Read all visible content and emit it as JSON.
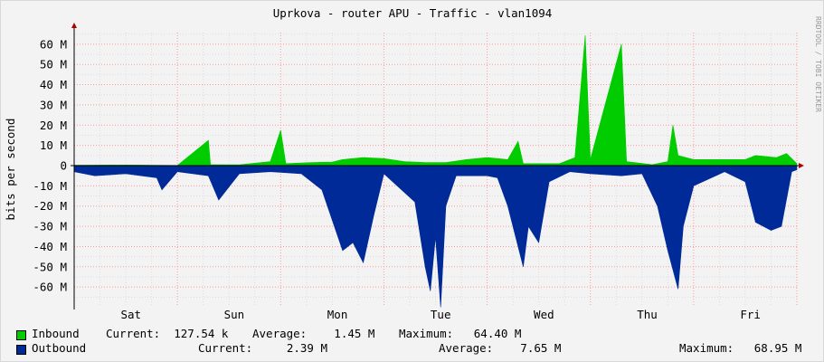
{
  "chart_data": {
    "type": "area",
    "title": "Uprkova - router APU - Traffic - vlan1094",
    "ylabel": "bits per second",
    "watermark": "RRDTOOL / TOBI OETIKER",
    "ylim": [
      -70000000,
      68000000
    ],
    "y_ticks": [
      {
        "value": 60000000,
        "label": "60 M"
      },
      {
        "value": 50000000,
        "label": "50 M"
      },
      {
        "value": 40000000,
        "label": "40 M"
      },
      {
        "value": 30000000,
        "label": "30 M"
      },
      {
        "value": 20000000,
        "label": "20 M"
      },
      {
        "value": 10000000,
        "label": "10 M"
      },
      {
        "value": 0,
        "label": "0"
      },
      {
        "value": -10000000,
        "label": "-10 M"
      },
      {
        "value": -20000000,
        "label": "-20 M"
      },
      {
        "value": -30000000,
        "label": "-30 M"
      },
      {
        "value": -40000000,
        "label": "-40 M"
      },
      {
        "value": -50000000,
        "label": "-50 M"
      },
      {
        "value": -60000000,
        "label": "-60 M"
      }
    ],
    "x_ticks": [
      "Sat",
      "Sun",
      "Mon",
      "Tue",
      "Wed",
      "Thu",
      "Fri"
    ],
    "grid": true,
    "colors": {
      "inbound": "#00cc00",
      "outbound": "#002a97",
      "grid_major": "#ff9999",
      "grid_minor": "#dddddd",
      "axis": "#000000",
      "arrow": "#aa0000"
    },
    "series": [
      {
        "name": "Inbound",
        "color": "#00cc00",
        "points": [
          [
            0,
            0.2
          ],
          [
            0.5,
            0.3
          ],
          [
            1.0,
            0.1
          ],
          [
            1.3,
            12.5
          ],
          [
            1.32,
            0.5
          ],
          [
            1.6,
            0.4
          ],
          [
            1.9,
            2
          ],
          [
            2.0,
            17.5
          ],
          [
            2.05,
            1
          ],
          [
            2.3,
            1.5
          ],
          [
            2.5,
            1.8
          ],
          [
            2.6,
            3
          ],
          [
            2.8,
            4
          ],
          [
            3.0,
            3.5
          ],
          [
            3.2,
            2
          ],
          [
            3.4,
            1.5
          ],
          [
            3.6,
            1.5
          ],
          [
            3.8,
            3
          ],
          [
            4.0,
            4
          ],
          [
            4.2,
            3
          ],
          [
            4.3,
            12
          ],
          [
            4.35,
            1
          ],
          [
            4.7,
            1
          ],
          [
            4.85,
            4
          ],
          [
            4.95,
            64.4
          ],
          [
            5.0,
            3
          ],
          [
            5.3,
            60
          ],
          [
            5.35,
            2
          ],
          [
            5.6,
            0.5
          ],
          [
            5.75,
            2
          ],
          [
            5.8,
            20
          ],
          [
            5.85,
            5
          ],
          [
            6.0,
            3
          ],
          [
            6.2,
            3
          ],
          [
            6.5,
            3
          ],
          [
            6.6,
            5
          ],
          [
            6.8,
            4
          ],
          [
            6.9,
            6
          ],
          [
            7.0,
            1
          ]
        ]
      },
      {
        "name": "Outbound",
        "color": "#002a97",
        "points": [
          [
            0,
            -3
          ],
          [
            0.2,
            -5
          ],
          [
            0.5,
            -4
          ],
          [
            0.8,
            -6
          ],
          [
            0.85,
            -12
          ],
          [
            1.0,
            -3
          ],
          [
            1.3,
            -5
          ],
          [
            1.4,
            -17
          ],
          [
            1.6,
            -4
          ],
          [
            1.9,
            -3
          ],
          [
            2.2,
            -4
          ],
          [
            2.4,
            -12
          ],
          [
            2.6,
            -42
          ],
          [
            2.7,
            -38
          ],
          [
            2.8,
            -48
          ],
          [
            2.9,
            -25
          ],
          [
            3.0,
            -4
          ],
          [
            3.3,
            -18
          ],
          [
            3.4,
            -50
          ],
          [
            3.45,
            -62
          ],
          [
            3.5,
            -35
          ],
          [
            3.55,
            -70
          ],
          [
            3.6,
            -20
          ],
          [
            3.7,
            -5
          ],
          [
            4.0,
            -5
          ],
          [
            4.1,
            -6
          ],
          [
            4.2,
            -20
          ],
          [
            4.35,
            -50
          ],
          [
            4.4,
            -30
          ],
          [
            4.5,
            -38
          ],
          [
            4.6,
            -8
          ],
          [
            4.8,
            -3
          ],
          [
            5.0,
            -4
          ],
          [
            5.3,
            -5
          ],
          [
            5.5,
            -4
          ],
          [
            5.65,
            -20
          ],
          [
            5.75,
            -42
          ],
          [
            5.85,
            -61
          ],
          [
            5.9,
            -30
          ],
          [
            6.0,
            -10
          ],
          [
            6.3,
            -3
          ],
          [
            6.5,
            -8
          ],
          [
            6.6,
            -28
          ],
          [
            6.75,
            -32
          ],
          [
            6.85,
            -30
          ],
          [
            6.95,
            -3
          ],
          [
            7.0,
            -2
          ]
        ]
      }
    ],
    "legend": {
      "inbound": {
        "label": "Inbound",
        "current": "Current:  127.54 k",
        "average": "Average:    1.45 M",
        "maximum": "Maximum:   64.40 M"
      },
      "outbound": {
        "label": "Outbound",
        "current": "Current:     2.39 M",
        "average": "Average:    7.65 M",
        "maximum": "Maximum:   68.95 M"
      }
    }
  }
}
